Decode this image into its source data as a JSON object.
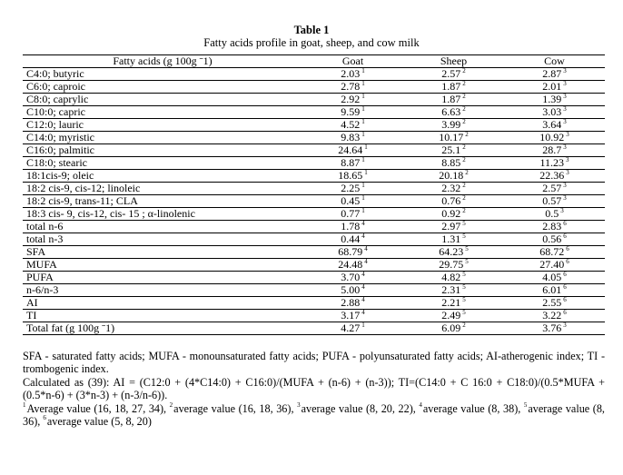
{
  "title": "Table 1",
  "subtitle": "Fatty acids profile in goat, sheep, and cow milk",
  "headers": [
    "Fatty acids (g 100g ˉ1)",
    "Goat",
    "Sheep",
    "Cow"
  ],
  "rows": [
    {
      "label": "C4:0; butyric",
      "goat": "2.03",
      "gs": "1",
      "sheep": "2.57",
      "ss": "2",
      "cow": "2.87",
      "cs": "3"
    },
    {
      "label": "C6:0; caproic",
      "goat": "2.78",
      "gs": "1",
      "sheep": "1.87",
      "ss": "2",
      "cow": "2.01",
      "cs": "3"
    },
    {
      "label": "C8:0; caprylic",
      "goat": "2.92",
      "gs": "1",
      "sheep": "1.87",
      "ss": "2",
      "cow": "1.39",
      "cs": "3"
    },
    {
      "label": "C10:0; capric",
      "goat": "9.59",
      "gs": "1",
      "sheep": "6.63",
      "ss": "2",
      "cow": "3.03",
      "cs": "3"
    },
    {
      "label": "C12:0; lauric",
      "goat": "4.52",
      "gs": "1",
      "sheep": "3.99",
      "ss": "2",
      "cow": "3.64",
      "cs": "3"
    },
    {
      "label": "C14:0; myristic",
      "goat": "9.83",
      "gs": "1",
      "sheep": "10.17",
      "ss": "2",
      "cow": "10.92",
      "cs": "3"
    },
    {
      "label": "C16:0; palmitic",
      "goat": "24.64",
      "gs": "1",
      "sheep": "25.1",
      "ss": "2",
      "cow": "28.7",
      "cs": "3"
    },
    {
      "label": "C18:0; stearic",
      "goat": "8.87",
      "gs": "1",
      "sheep": "8.85",
      "ss": "2",
      "cow": "11.23",
      "cs": "3"
    },
    {
      "label": "18:1cis-9; oleic",
      "goat": "18.65",
      "gs": "1",
      "sheep": "20.18",
      "ss": "2",
      "cow": "22.36",
      "cs": "3"
    },
    {
      "label": "18:2 cis-9, cis-12; linoleic",
      "goat": "2.25",
      "gs": "1",
      "sheep": "2.32",
      "ss": "2",
      "cow": "2.57",
      "cs": "3"
    },
    {
      "label": "18:2 cis-9, trans-11; CLA",
      "goat": "0.45",
      "gs": "1",
      "sheep": "0.76",
      "ss": "2",
      "cow": "0.57",
      "cs": "3"
    },
    {
      "label": "18:3 cis- 9, cis-12, cis- 15 ; α-linolenic",
      "goat": "0.77",
      "gs": "1",
      "sheep": "0.92",
      "ss": "2",
      "cow": "0.5",
      "cs": "3"
    },
    {
      "label": "total n-6",
      "goat": "1.78",
      "gs": "4",
      "sheep": "2.97",
      "ss": "5",
      "cow": "2.83",
      "cs": "6"
    },
    {
      "label": "total n-3",
      "goat": "0.44",
      "gs": "4",
      "sheep": "1.31",
      "ss": "5",
      "cow": "0.56",
      "cs": "6"
    },
    {
      "label": "SFA",
      "goat": "68.79",
      "gs": "4",
      "sheep": "64.23",
      "ss": "5",
      "cow": "68.72",
      "cs": "6"
    },
    {
      "label": "MUFA",
      "goat": "24.48",
      "gs": "4",
      "sheep": "29.75",
      "ss": "5",
      "cow": "27.40",
      "cs": "6"
    },
    {
      "label": "PUFA",
      "goat": "3.70",
      "gs": "4",
      "sheep": "4.82",
      "ss": "5",
      "cow": "4.05",
      "cs": "6"
    },
    {
      "label": "n-6/n-3",
      "goat": "5.00",
      "gs": "4",
      "sheep": "2.31",
      "ss": "5",
      "cow": "6.01",
      "cs": "6"
    },
    {
      "label": "AI",
      "goat": "2.88",
      "gs": "4",
      "sheep": "2.21",
      "ss": "5",
      "cow": "2.55",
      "cs": "6"
    },
    {
      "label": "TI",
      "goat": "3.17",
      "gs": "4",
      "sheep": "2.49",
      "ss": "5",
      "cow": "3.22",
      "cs": "6"
    },
    {
      "label": "Total fat (g 100g ˉ1)",
      "goat": "4.27",
      "gs": "1",
      "sheep": "6.09",
      "ss": "2",
      "cow": "3.76",
      "cs": "3"
    }
  ],
  "notes": {
    "abbrev": "SFA - saturated fatty acids; MUFA - monounsaturated fatty acids; PUFA - polyunsaturated fatty acids; AI-atherogenic index; TI - trombogenic index.",
    "formula": "Calculated as (39): AI = (C12:0 + (4*C14:0) + C16:0)/(MUFA + (n-6) + (n-3)); TI=(C14:0 + C 16:0 + C18:0)/(0.5*MUFA + (0.5*n-6) + (3*n-3) + (n-3/n-6)).",
    "footnotes": [
      {
        "mark": "1",
        "text": "Average value (16, 18, 27, 34), "
      },
      {
        "mark": "2",
        "text": "average value (16, 18, 36), "
      },
      {
        "mark": "3",
        "text": "average value (8, 20, 22), "
      },
      {
        "mark": "4",
        "text": "average value (8, 38), "
      },
      {
        "mark": "5",
        "text": "average value (8, 36), "
      },
      {
        "mark": "6",
        "text": "average value (5, 8, 20)"
      }
    ]
  }
}
